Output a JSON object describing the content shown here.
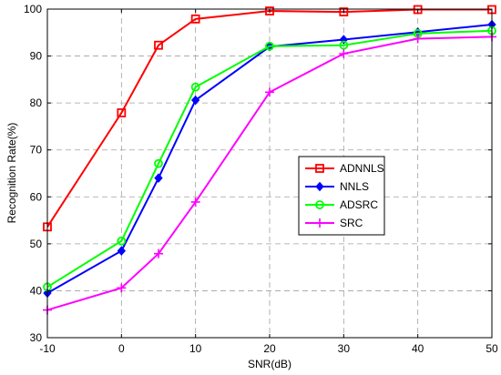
{
  "chart_data": {
    "type": "line",
    "title": "",
    "xlabel": "SNR(dB)",
    "ylabel": "Recognition Rate(%)",
    "ylim": [
      30,
      100
    ],
    "x_ticks": [
      -10,
      0,
      10,
      20,
      30,
      40,
      50
    ],
    "y_ticks": [
      30,
      40,
      50,
      60,
      70,
      80,
      90,
      100
    ],
    "grid": true,
    "legend_position": "right",
    "x": [
      -10,
      0,
      5,
      10,
      20,
      30,
      40,
      50
    ],
    "series": [
      {
        "name": "ADNNLS",
        "color": "#ff0000",
        "marker": "square",
        "values": [
          53.6,
          77.9,
          92.3,
          97.9,
          99.6,
          99.4,
          99.9,
          99.9
        ]
      },
      {
        "name": "NNLS",
        "color": "#0000ff",
        "marker": "diamond",
        "values": [
          39.5,
          48.5,
          64.0,
          80.6,
          92.0,
          93.5,
          95.1,
          96.7
        ]
      },
      {
        "name": "ADSRC",
        "color": "#00ff00",
        "marker": "circle",
        "values": [
          40.8,
          50.6,
          67.1,
          83.4,
          92.1,
          92.3,
          94.8,
          95.4
        ]
      },
      {
        "name": "SRC",
        "color": "#ff00ff",
        "marker": "plus",
        "values": [
          35.9,
          40.6,
          47.9,
          58.9,
          82.3,
          90.5,
          93.7,
          94.1
        ]
      }
    ]
  }
}
